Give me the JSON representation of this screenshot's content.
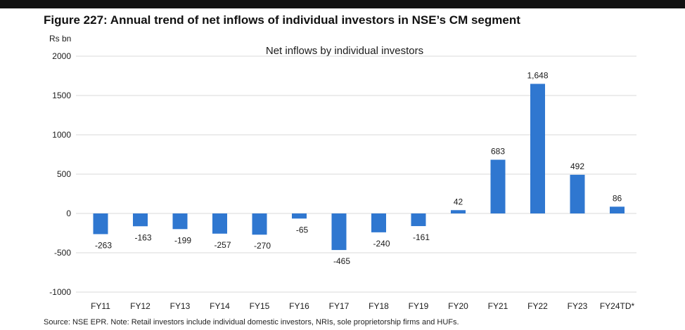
{
  "figure_title": "Figure 227: Annual trend of net inflows of individual investors in NSE’s CM segment",
  "source_note": "Source: NSE EPR. Note: Retail investors include individual domestic investors, NRIs, sole proprietorship firms and HUFs.",
  "colors": {
    "bar": "#2f77d0",
    "gridline": "#d9d9d9",
    "top_bar": "#111111"
  },
  "chart_data": {
    "type": "bar",
    "title": "Net inflows by individual investors",
    "ylabel": "Rs bn",
    "xlabel": "",
    "ylim": [
      -1000,
      2000
    ],
    "yticks": [
      2000,
      1500,
      1000,
      500,
      0,
      -500,
      -1000
    ],
    "grid": true,
    "categories": [
      "FY11",
      "FY12",
      "FY13",
      "FY14",
      "FY15",
      "FY16",
      "FY17",
      "FY18",
      "FY19",
      "FY20",
      "FY21",
      "FY22",
      "FY23",
      "FY24TD*"
    ],
    "values": [
      -263,
      -163,
      -199,
      -257,
      -270,
      -65,
      -465,
      -240,
      -161,
      42,
      683,
      1648,
      492,
      86
    ],
    "data_labels": [
      "-263",
      "-163",
      "-199",
      "-257",
      "-270",
      "-65",
      "-465",
      "-240",
      "-161",
      "42",
      "683",
      "1,648",
      "492",
      "86"
    ]
  }
}
